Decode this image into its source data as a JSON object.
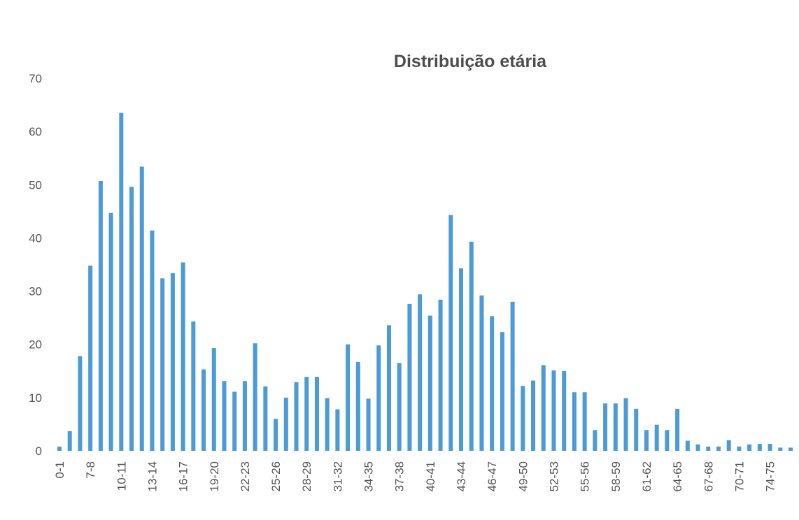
{
  "chart_data": {
    "type": "bar",
    "title": "Distribuição etária",
    "categories": [
      "0-1",
      null,
      null,
      "7-8",
      null,
      null,
      "10-11",
      null,
      null,
      "13-14",
      null,
      null,
      "16-17",
      null,
      null,
      "19-20",
      null,
      null,
      "22-23",
      null,
      null,
      "25-26",
      null,
      null,
      "28-29",
      null,
      null,
      "31-32",
      null,
      null,
      "34-35",
      null,
      null,
      "37-38",
      null,
      null,
      "40-41",
      null,
      null,
      "43-44",
      null,
      null,
      "46-47",
      null,
      null,
      "49-50",
      null,
      null,
      "52-53",
      null,
      null,
      "55-56",
      null,
      null,
      "58-59",
      null,
      null,
      "61-62",
      null,
      null,
      "64-65",
      null,
      null,
      "67-68",
      null,
      null,
      "70-71",
      null,
      null,
      "74-75",
      null,
      null
    ],
    "values": [
      0.8,
      3.7,
      17.8,
      34.8,
      50.7,
      44.7,
      63.5,
      49.6,
      53.4,
      41.4,
      32.4,
      33.4,
      35.4,
      24.3,
      15.3,
      19.3,
      13.1,
      11.1,
      13.1,
      20.2,
      12.1,
      6.0,
      10.0,
      12.9,
      13.9,
      13.9,
      9.9,
      7.8,
      20.0,
      16.7,
      9.8,
      19.8,
      23.6,
      16.5,
      27.6,
      29.4,
      25.4,
      28.4,
      44.3,
      34.3,
      39.3,
      29.2,
      25.3,
      22.3,
      28.0,
      12.2,
      13.2,
      16.1,
      15.1,
      15.0,
      11.0,
      11.0,
      3.9,
      8.9,
      8.9,
      9.9,
      7.9,
      3.9,
      4.9,
      3.9,
      7.9,
      1.9,
      1.2,
      0.8,
      0.8,
      2.0,
      0.8,
      1.2,
      1.3,
      1.3,
      0.6,
      0.6
    ],
    "color": "#4a9bd6",
    "ylim": [
      0,
      70
    ],
    "yticks": [
      0,
      10,
      20,
      30,
      40,
      50,
      60,
      70
    ],
    "grid": false
  }
}
